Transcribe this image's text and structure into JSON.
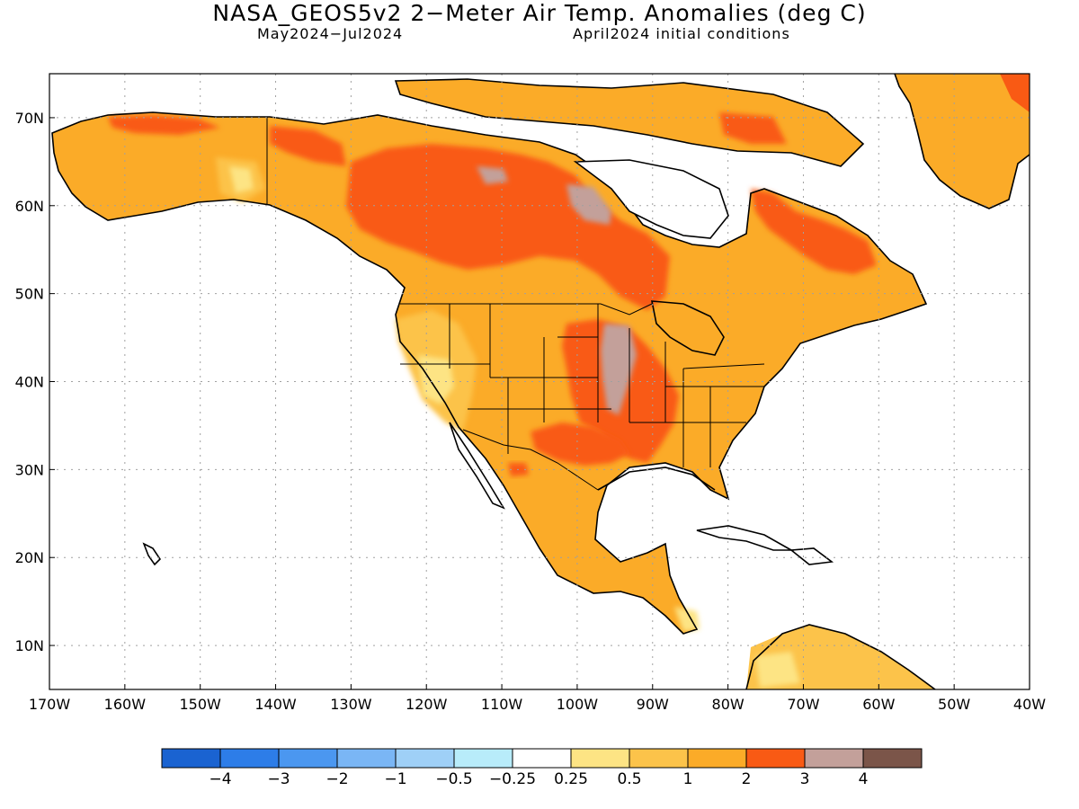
{
  "title": "NASA_GEOS5v2 2−Meter Air Temp. Anomalies (deg C)",
  "subtitle_left": "May2024−Jul2024",
  "subtitle_right": "April2024 initial conditions",
  "map": {
    "lon_range": [
      -170,
      -40
    ],
    "lat_range": [
      5,
      75
    ],
    "lon_labels": [
      "170W",
      "160W",
      "150W",
      "140W",
      "130W",
      "120W",
      "110W",
      "100W",
      "90W",
      "80W",
      "70W",
      "60W",
      "50W",
      "40W"
    ],
    "lat_labels": [
      "10N",
      "20N",
      "30N",
      "40N",
      "50N",
      "60N",
      "70N"
    ],
    "grid": "dotted"
  },
  "colorbar": {
    "colors": [
      "#1a63d1",
      "#2d7de8",
      "#4b97f0",
      "#7ab6f5",
      "#9fd0f7",
      "#b8ecfa",
      "#ffffff",
      "#fde484",
      "#fcc34a",
      "#fbab28",
      "#f95a14",
      "#c3a09a",
      "#7b5549"
    ],
    "labels": [
      "−4",
      "−3",
      "−2",
      "−1",
      "−0.5",
      "−0.25",
      "0.25",
      "0.5",
      "1",
      "2",
      "3",
      "4"
    ]
  }
}
